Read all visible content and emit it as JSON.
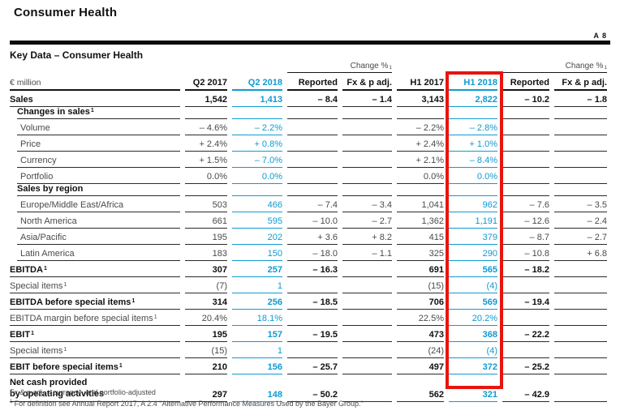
{
  "page": {
    "title": "Consumer Health",
    "page_ref": "A 8",
    "table_title": "Key Data – Consumer Health",
    "unit_label": "€ million",
    "change_label": "Change %",
    "change_sup": "1",
    "footnote_line1": "Fx & p adj. = currency- and portfolio-adjusted",
    "footnote2_sup": "1",
    "footnote_line2": "For definition see Annual Report 2017, A 2.4 \"Alternative Performance Measures Used by the Bayer Group.\""
  },
  "colors": {
    "accent_blue": "#0f9ad2",
    "highlight_red": "#e8140e",
    "text_dark": "#111111",
    "text_gray": "#4a4a4a"
  },
  "columns": [
    {
      "label": "Q2 2017",
      "key": "q2-2017",
      "blue": false
    },
    {
      "label": "Q2 2018",
      "key": "q2-2018",
      "blue": true
    },
    {
      "label": "Reported",
      "key": "change-reported-q2",
      "blue": false
    },
    {
      "label": "Fx & p adj.",
      "key": "change-fxp-q2",
      "blue": false
    },
    {
      "label": "H1 2017",
      "key": "h1-2017",
      "blue": false
    },
    {
      "label": "H1 2018",
      "key": "h1-2018",
      "blue": true
    },
    {
      "label": "Reported",
      "key": "change-reported-h1",
      "blue": false
    },
    {
      "label": "Fx & p adj.",
      "key": "change-fxp-h1",
      "blue": false
    }
  ],
  "highlighted_column": "H1 2018",
  "rows": [
    {
      "label": "Sales",
      "sup": "",
      "style": "bold",
      "values": [
        "1,542",
        "1,413",
        "– 8.4",
        "– 1.4",
        "3,143",
        "2,822",
        "– 10.2",
        "– 1.8"
      ]
    },
    {
      "label": "Changes in sales",
      "sup": "1",
      "style": "section",
      "values": [
        "",
        "",
        "",
        "",
        "",
        "",
        "",
        ""
      ]
    },
    {
      "label": "Volume",
      "sup": "",
      "style": "indent",
      "values": [
        "– 4.6%",
        "– 2.2%",
        "",
        "",
        "– 2.2%",
        "– 2.8%",
        "",
        ""
      ]
    },
    {
      "label": "Price",
      "sup": "",
      "style": "indent",
      "values": [
        "+ 2.4%",
        "+ 0.8%",
        "",
        "",
        "+ 2.4%",
        "+ 1.0%",
        "",
        ""
      ]
    },
    {
      "label": "Currency",
      "sup": "",
      "style": "indent",
      "values": [
        "+ 1.5%",
        "– 7.0%",
        "",
        "",
        "+ 2.1%",
        "– 8.4%",
        "",
        ""
      ]
    },
    {
      "label": "Portfolio",
      "sup": "",
      "style": "indent",
      "values": [
        "0.0%",
        "0.0%",
        "",
        "",
        "0.0%",
        "0.0%",
        "",
        ""
      ]
    },
    {
      "label": "Sales by region",
      "sup": "",
      "style": "section",
      "values": [
        "",
        "",
        "",
        "",
        "",
        "",
        "",
        ""
      ]
    },
    {
      "label": "Europe/Middle East/Africa",
      "sup": "",
      "style": "indent",
      "values": [
        "503",
        "466",
        "– 7.4",
        "– 3.4",
        "1,041",
        "962",
        "– 7.6",
        "– 3.5"
      ]
    },
    {
      "label": "North America",
      "sup": "",
      "style": "indent",
      "values": [
        "661",
        "595",
        "– 10.0",
        "– 2.7",
        "1,362",
        "1,191",
        "– 12.6",
        "– 2.4"
      ]
    },
    {
      "label": "Asia/Pacific",
      "sup": "",
      "style": "indent",
      "values": [
        "195",
        "202",
        "+ 3.6",
        "+ 8.2",
        "415",
        "379",
        "– 8.7",
        "– 2.7"
      ]
    },
    {
      "label": "Latin America",
      "sup": "",
      "style": "indent",
      "values": [
        "183",
        "150",
        "– 18.0",
        "– 1.1",
        "325",
        "290",
        "– 10.8",
        "+ 6.8"
      ]
    },
    {
      "label": "EBITDA",
      "sup": "1",
      "style": "bold",
      "values": [
        "307",
        "257",
        "– 16.3",
        "",
        "691",
        "565",
        "– 18.2",
        ""
      ]
    },
    {
      "label": "Special items",
      "sup": "1",
      "style": "plain",
      "values": [
        "(7)",
        "1",
        "",
        "",
        "(15)",
        "(4)",
        "",
        ""
      ]
    },
    {
      "label": "EBITDA before special items",
      "sup": "1",
      "style": "bold",
      "values": [
        "314",
        "256",
        "– 18.5",
        "",
        "706",
        "569",
        "– 19.4",
        ""
      ]
    },
    {
      "label": "EBITDA margin before special items",
      "sup": "1",
      "style": "plain",
      "values": [
        "20.4%",
        "18.1%",
        "",
        "",
        "22.5%",
        "20.2%",
        "",
        ""
      ]
    },
    {
      "label": "EBIT",
      "sup": "1",
      "style": "bold",
      "values": [
        "195",
        "157",
        "– 19.5",
        "",
        "473",
        "368",
        "– 22.2",
        ""
      ]
    },
    {
      "label": "Special items",
      "sup": "1",
      "style": "plain",
      "values": [
        "(15)",
        "1",
        "",
        "",
        "(24)",
        "(4)",
        "",
        ""
      ]
    },
    {
      "label": "EBIT before special items",
      "sup": "1",
      "style": "bold",
      "values": [
        "210",
        "156",
        "– 25.7",
        "",
        "497",
        "372",
        "– 25.2",
        ""
      ]
    },
    {
      "label": "Net cash provided",
      "label2": "by operating activities",
      "sup": "",
      "style": "bold netcash",
      "values": [
        "297",
        "148",
        "– 50.2",
        "",
        "562",
        "321",
        "– 42.9",
        ""
      ]
    }
  ]
}
